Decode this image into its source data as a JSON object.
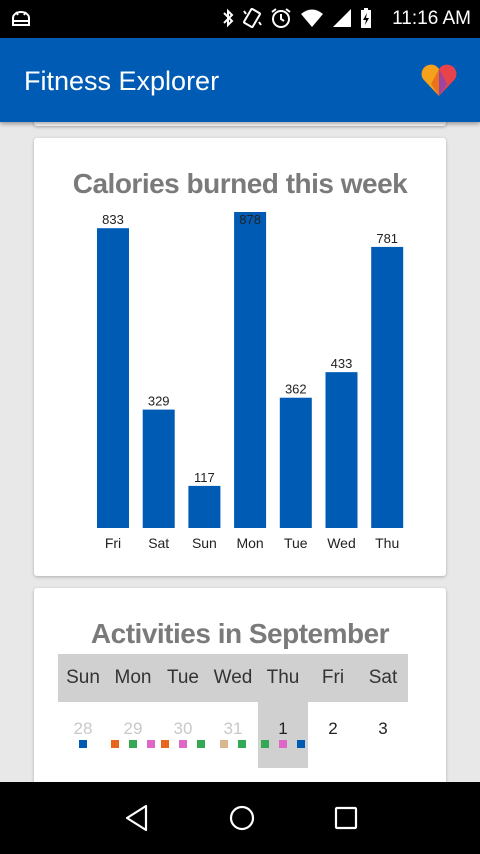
{
  "status_bar": {
    "time": "11:16 AM",
    "icons": [
      "android-icon",
      "bluetooth-icon",
      "vibrate-icon",
      "alarm-icon",
      "wifi-icon",
      "signal-icon",
      "battery-charging-icon"
    ]
  },
  "app_bar": {
    "title": "Fitness Explorer",
    "logo": "heart-logo-icon",
    "color": "#005bb5"
  },
  "calories_card": {
    "title": "Calories burned this week",
    "bar_color": "#005bb5"
  },
  "chart_data": {
    "type": "bar",
    "title": "Calories burned this week",
    "categories": [
      "Fri",
      "Sat",
      "Sun",
      "Mon",
      "Tue",
      "Wed",
      "Thu"
    ],
    "values": [
      833,
      329,
      117,
      878,
      362,
      433,
      781
    ],
    "data_labels": [
      "833",
      "329",
      "117",
      "878",
      "362",
      "433",
      "781"
    ],
    "ylim": [
      0,
      878
    ],
    "grid": false,
    "legend": "none"
  },
  "activities_card": {
    "title": "Activities in September",
    "weekdays": [
      "Sun",
      "Mon",
      "Tue",
      "Wed",
      "Thu",
      "Fri",
      "Sat"
    ],
    "week": [
      {
        "day": "28",
        "other_month": true,
        "today": false,
        "dots": [
          "#005bb5"
        ]
      },
      {
        "day": "29",
        "other_month": true,
        "today": false,
        "dots": [
          "#e8671c",
          "#34a853",
          "#e066c8"
        ]
      },
      {
        "day": "30",
        "other_month": true,
        "today": false,
        "dots": [
          "#e8671c",
          "#e066c8",
          "#34a853"
        ]
      },
      {
        "day": "31",
        "other_month": true,
        "today": false,
        "dots": [
          "#d9b88f",
          "#34a853"
        ]
      },
      {
        "day": "1",
        "other_month": false,
        "today": true,
        "dots": [
          "#34a853",
          "#e066c8",
          "#005bb5"
        ]
      },
      {
        "day": "2",
        "other_month": false,
        "today": false,
        "dots": []
      },
      {
        "day": "3",
        "other_month": false,
        "today": false,
        "dots": []
      }
    ]
  },
  "nav_bar": {
    "icons": [
      "back-icon",
      "home-icon",
      "recents-icon"
    ]
  }
}
